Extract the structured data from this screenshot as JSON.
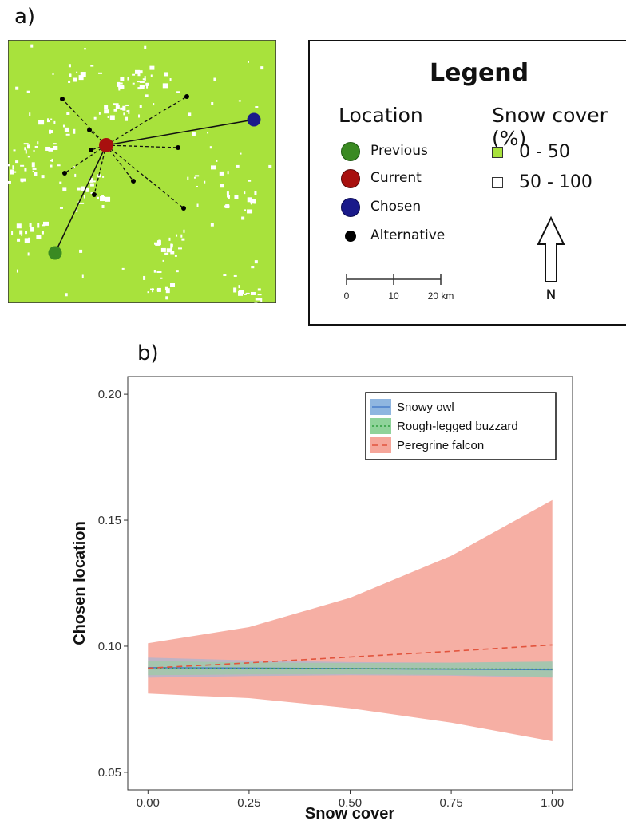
{
  "panel_a_label": "a)",
  "panel_b_label": "b)",
  "legend": {
    "title": "Legend",
    "location_heading": "Location",
    "snow_heading": "Snow cover (%)",
    "location_items": [
      {
        "label": "Previous",
        "color": "#3a8a22"
      },
      {
        "label": "Current",
        "color": "#a8100e"
      },
      {
        "label": "Chosen",
        "color": "#1a1a8a"
      },
      {
        "label": "Alternative",
        "color": "#000000"
      }
    ],
    "snow_items": [
      {
        "label": "0 - 50",
        "color": "#a8e23c"
      },
      {
        "label": "50 - 100",
        "color": "#ffffff"
      }
    ],
    "scale_ticks": [
      "0",
      "10",
      "20 km"
    ],
    "north_label": "N"
  },
  "map": {
    "background_color": "#a8e23c",
    "snow_color": "#ffffff"
  },
  "chart_data": {
    "type": "line",
    "xlabel": "Snow cover",
    "ylabel": "Chosen location",
    "xlim": [
      -0.05,
      1.05
    ],
    "ylim": [
      0.043,
      0.207
    ],
    "x_ticks": [
      "0.00",
      "0.25",
      "0.50",
      "0.75",
      "1.00"
    ],
    "x_tick_values": [
      0.0,
      0.25,
      0.5,
      0.75,
      1.0
    ],
    "y_ticks": [
      "0.05",
      "0.10",
      "0.15",
      "0.20"
    ],
    "y_tick_values": [
      0.05,
      0.1,
      0.15,
      0.2
    ],
    "grid": false,
    "legend_position": "top-right",
    "series": [
      {
        "name": "Snowy owl",
        "color": "#4a7fcb",
        "band_color": "#8fb6e0",
        "line_style": "solid",
        "x": [
          0.0,
          0.25,
          0.5,
          0.75,
          1.0
        ],
        "y": [
          0.0915,
          0.0913,
          0.0911,
          0.0909,
          0.0907
        ],
        "lower": [
          0.0875,
          0.0882,
          0.0885,
          0.0883,
          0.0875
        ],
        "upper": [
          0.0955,
          0.0944,
          0.0937,
          0.0935,
          0.0939
        ]
      },
      {
        "name": "Rough-legged buzzard",
        "color": "#2e9e3e",
        "band_color": "#8fd39a",
        "line_style": "dotted",
        "x": [
          0.0,
          0.25,
          0.5,
          0.75,
          1.0
        ],
        "y": [
          0.0913,
          0.0912,
          0.0911,
          0.091,
          0.0909
        ],
        "lower": [
          0.0885,
          0.0888,
          0.0889,
          0.0886,
          0.0879
        ],
        "upper": [
          0.0941,
          0.0936,
          0.0933,
          0.0934,
          0.0939
        ]
      },
      {
        "name": "Peregrine falcon",
        "color": "#e2543d",
        "band_color": "#f5a69a",
        "line_style": "dashed",
        "x": [
          0.0,
          0.25,
          0.5,
          0.75,
          1.0
        ],
        "y": [
          0.0913,
          0.0934,
          0.0957,
          0.098,
          0.1005
        ],
        "lower": [
          0.0812,
          0.0794,
          0.0754,
          0.0697,
          0.0623
        ],
        "upper": [
          0.1012,
          0.1076,
          0.1192,
          0.1359,
          0.158
        ]
      }
    ]
  }
}
